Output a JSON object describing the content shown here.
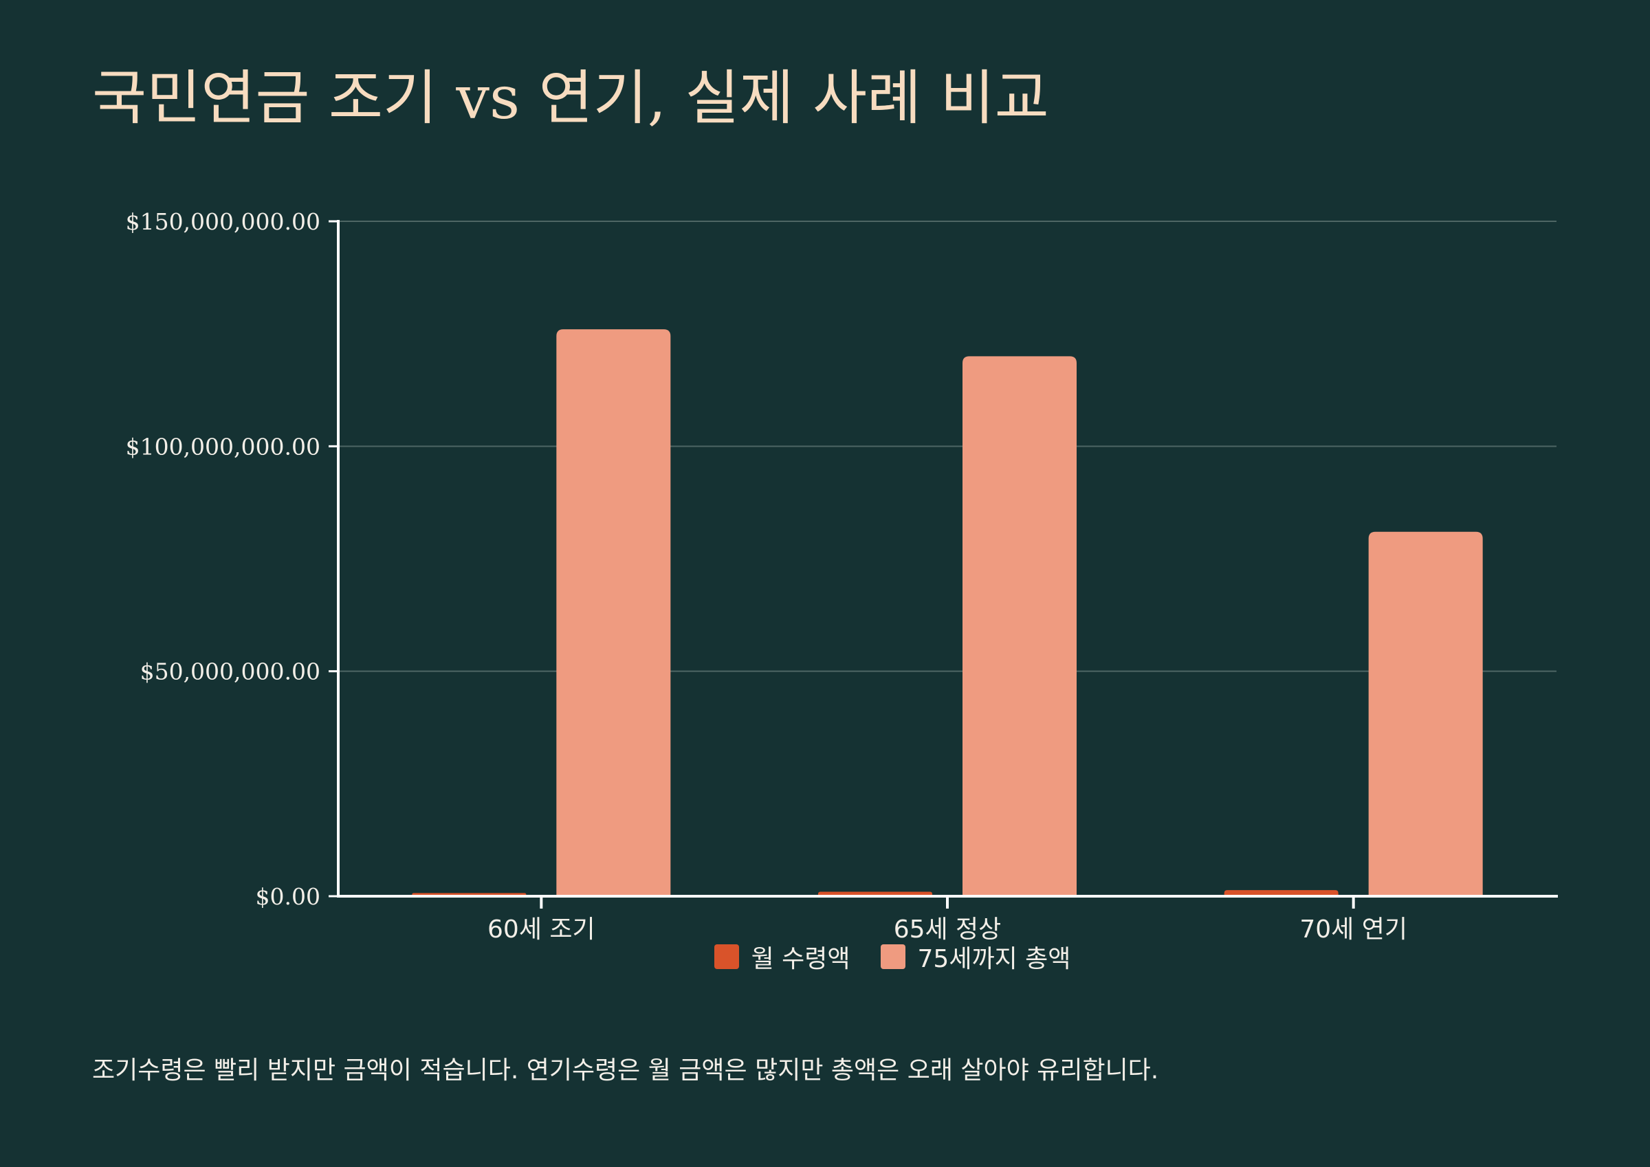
{
  "title": "국민연금 조기 vs 연기, 실제 사례 비교",
  "footnote": "조기수령은 빨리 받지만 금액이 적습니다. 연기수령은 월 금액은 많지만 총액은 오래 살아야 유리합니다.",
  "colors": {
    "background": "#153233",
    "title": "#f7dcc0",
    "text": "#f3efe8",
    "grid": "#4e6664",
    "axis": "#ffffff",
    "series_monthly": "#d9532a",
    "series_total": "#ef9b80"
  },
  "chart_data": {
    "type": "bar",
    "categories": [
      "60세 조기",
      "65세 정상",
      "70세 연기"
    ],
    "series": [
      {
        "name": "월 수령액",
        "values": [
          700000,
          1000000,
          1350000
        ]
      },
      {
        "name": "75세까지 총액",
        "values": [
          126000000,
          120000000,
          81000000
        ]
      }
    ],
    "y_ticks": [
      "$0.00",
      "$50,000,000.00",
      "$100,000,000.00",
      "$150,000,000.00"
    ],
    "ylim": [
      0,
      150000000
    ],
    "grid": true,
    "legend_position": "bottom"
  }
}
